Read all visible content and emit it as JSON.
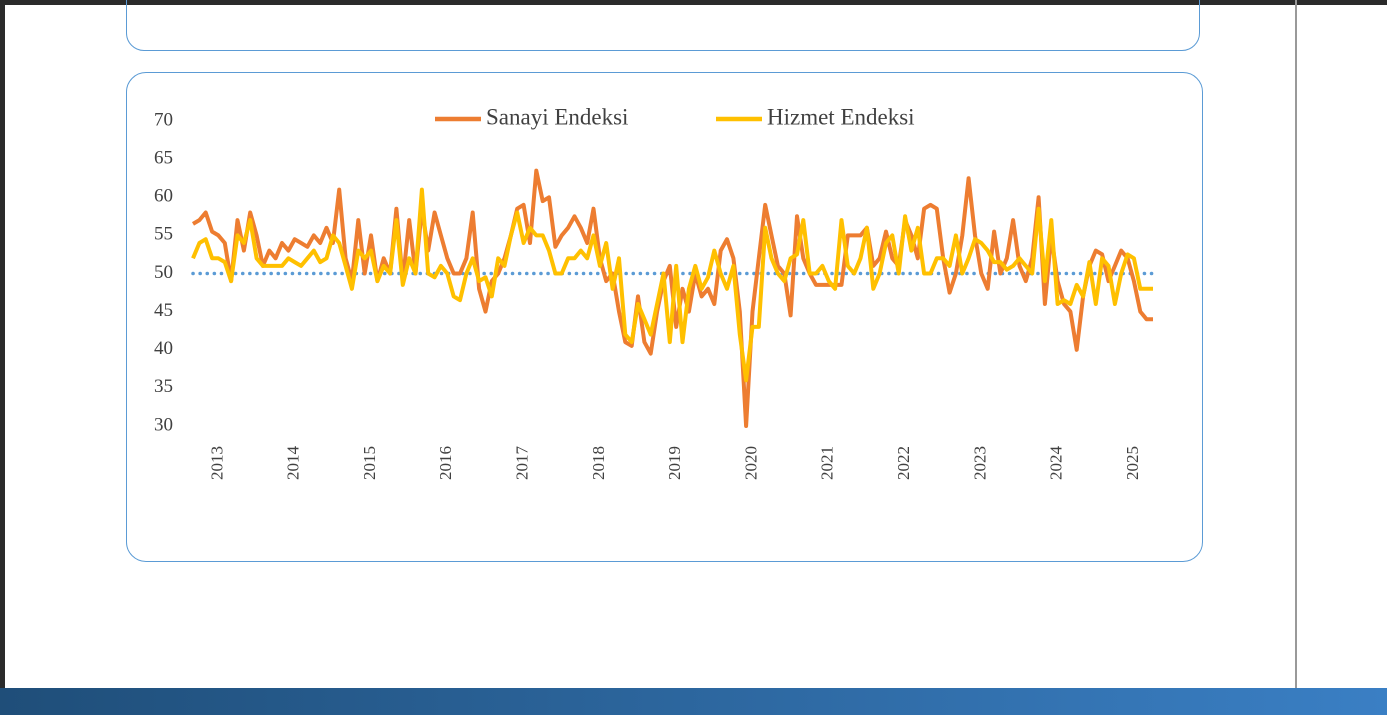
{
  "chart_data": {
    "type": "line",
    "categories": [
      null,
      null,
      null,
      null,
      "2013",
      null,
      null,
      null,
      null,
      null,
      null,
      null,
      null,
      null,
      null,
      null,
      "2014",
      null,
      null,
      null,
      null,
      null,
      null,
      null,
      null,
      null,
      null,
      null,
      "2015",
      null,
      null,
      null,
      null,
      null,
      null,
      null,
      null,
      null,
      null,
      null,
      "2016",
      null,
      null,
      null,
      null,
      null,
      null,
      null,
      null,
      null,
      null,
      null,
      "2017",
      null,
      null,
      null,
      null,
      null,
      null,
      null,
      null,
      null,
      null,
      null,
      "2018",
      null,
      null,
      null,
      null,
      null,
      null,
      null,
      null,
      null,
      null,
      null,
      "2019",
      null,
      null,
      null,
      null,
      null,
      null,
      null,
      null,
      null,
      null,
      null,
      "2020",
      null,
      null,
      null,
      null,
      null,
      null,
      null,
      null,
      null,
      null,
      null,
      "2021",
      null,
      null,
      null,
      null,
      null,
      null,
      null,
      null,
      null,
      null,
      null,
      "2022",
      null,
      null,
      null,
      null,
      null,
      null,
      null,
      null,
      null,
      null,
      null,
      "2023",
      null,
      null,
      null,
      null,
      null,
      null,
      null,
      null,
      null,
      null,
      null,
      "2024",
      null,
      null,
      null,
      null,
      null,
      null,
      null,
      null,
      null,
      null,
      null,
      "2025",
      null,
      null,
      null
    ],
    "series": [
      {
        "name": "Sanayi Endeksi",
        "color": "#ed7d31",
        "values": [
          56.5,
          57,
          58,
          55.5,
          55,
          54,
          49,
          57,
          53,
          58,
          55,
          51,
          53,
          52,
          54,
          53,
          54.5,
          54,
          53.5,
          55,
          54,
          56,
          54,
          61,
          52,
          49,
          57,
          50,
          55,
          49,
          52,
          50,
          58.5,
          49,
          57,
          50,
          58.5,
          53,
          58,
          55,
          52,
          50,
          50,
          52,
          58,
          48,
          45,
          49,
          50,
          52,
          55,
          58.5,
          59,
          54,
          63.5,
          59.5,
          60,
          53.5,
          55,
          56,
          57.5,
          56,
          54,
          58.5,
          52,
          49,
          50,
          45,
          41,
          40.5,
          47,
          41,
          39.5,
          45,
          49,
          51,
          43,
          48,
          45,
          50,
          47,
          48,
          46,
          53,
          54.5,
          52,
          45,
          30,
          45,
          52,
          59,
          55,
          51,
          50,
          44.5,
          57.5,
          52,
          50,
          48.5,
          48.5,
          48.5,
          48.5,
          48.5,
          55,
          55,
          55,
          56,
          51,
          52,
          55.5,
          52,
          51,
          57,
          55,
          52,
          58.5,
          59,
          58.5,
          52,
          47.5,
          50,
          55,
          62.5,
          55,
          50,
          48,
          55.5,
          50,
          52,
          57,
          51,
          49,
          52,
          60,
          46,
          55,
          49,
          46,
          45,
          40,
          47,
          51,
          53,
          52.5,
          49,
          51,
          53,
          52,
          49,
          45,
          44,
          44
        ]
      },
      {
        "name": "Hizmet Endeksi",
        "color": "#ffc000",
        "values": [
          52,
          54,
          54.5,
          52,
          52,
          51.5,
          49,
          55,
          54,
          57,
          52,
          51,
          51,
          51,
          51,
          52,
          51.5,
          51,
          52,
          53,
          51.5,
          52,
          55,
          54,
          51,
          48,
          53,
          52,
          53,
          49,
          51,
          50,
          57,
          48.5,
          52,
          50,
          61,
          50,
          49.5,
          51,
          50,
          47,
          46.5,
          50,
          52,
          49,
          49.5,
          47,
          52,
          51,
          55,
          58,
          54,
          56,
          55,
          55,
          53,
          50,
          50,
          52,
          52,
          53,
          52,
          55,
          51,
          54,
          48,
          52,
          42,
          41,
          46,
          44,
          42,
          46,
          50,
          41,
          51,
          41,
          48,
          51,
          48,
          49.5,
          53,
          50,
          48,
          51,
          42,
          36,
          43,
          43,
          56,
          52,
          50,
          49,
          52,
          52.5,
          57,
          50,
          50,
          51,
          49,
          48,
          57,
          51,
          50,
          52,
          56,
          48,
          50,
          54,
          55,
          50,
          57.5,
          53,
          56,
          50,
          50,
          52,
          52,
          51,
          55,
          50,
          52,
          54.5,
          54,
          53,
          51.5,
          51.5,
          50.5,
          51,
          52,
          51,
          50,
          58.5,
          49,
          57,
          46,
          46.5,
          46,
          48.5,
          47,
          51.5,
          46,
          52,
          51,
          46,
          50,
          52.5,
          52,
          48,
          48,
          48
        ]
      }
    ],
    "reference": {
      "value": 50,
      "color": "#5b9bd5"
    },
    "ylim": [
      30,
      70
    ],
    "yticks": [
      30,
      35,
      40,
      45,
      50,
      55,
      60,
      65,
      70
    ],
    "grid": false,
    "legend": "top"
  }
}
